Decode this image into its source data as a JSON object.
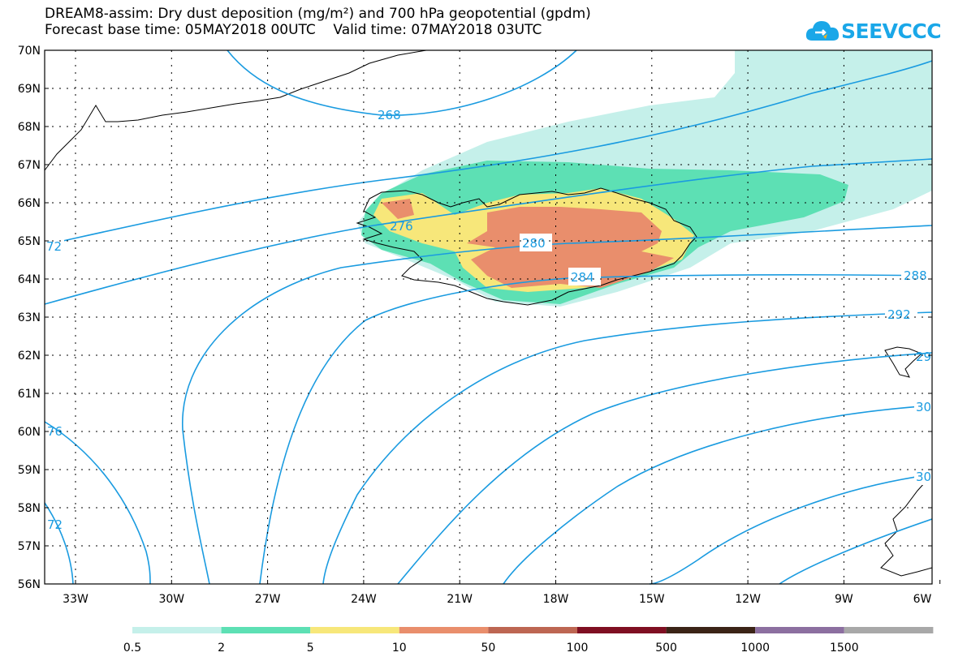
{
  "title": {
    "line1": "DREAM8-assim: Dry dust deposition (mg/m²) and 700 hPa geopotential (gpdm)",
    "line2": "Forecast base time: 05MAY2018 00UTC    Valid time: 07MAY2018 03UTC"
  },
  "logo": {
    "text": "SEEVCCC",
    "color": "#1aa7e8"
  },
  "map": {
    "lat_labels": [
      "70N",
      "69N",
      "68N",
      "67N",
      "66N",
      "65N",
      "64N",
      "63N",
      "62N",
      "61N",
      "60N",
      "59N",
      "58N",
      "57N",
      "56N"
    ],
    "lon_labels": [
      "33W",
      "30W",
      "27W",
      "24W",
      "21W",
      "18W",
      "15W",
      "12W",
      "9W",
      "6W"
    ],
    "contour_labels": {
      "c268": "268",
      "c272a": "72",
      "c276a": "276",
      "c280": "280",
      "c284": "284",
      "c288": "288",
      "c292": "292",
      "c296": "29",
      "c300": "30",
      "c304": "30",
      "c276b": "76",
      "c272b": "72"
    },
    "contour_color": "#1a9be0"
  },
  "legend": {
    "thresholds": [
      "0.5",
      "2",
      "5",
      "10",
      "50",
      "100",
      "500",
      "1000",
      "1500"
    ],
    "colors": [
      "#c5f0ea",
      "#5de0b4",
      "#f7e77a",
      "#e98e6c",
      "#bd6652",
      "#7f0f22",
      "#3b2417",
      "#8c6fa0",
      "#a8a8a8"
    ]
  }
}
